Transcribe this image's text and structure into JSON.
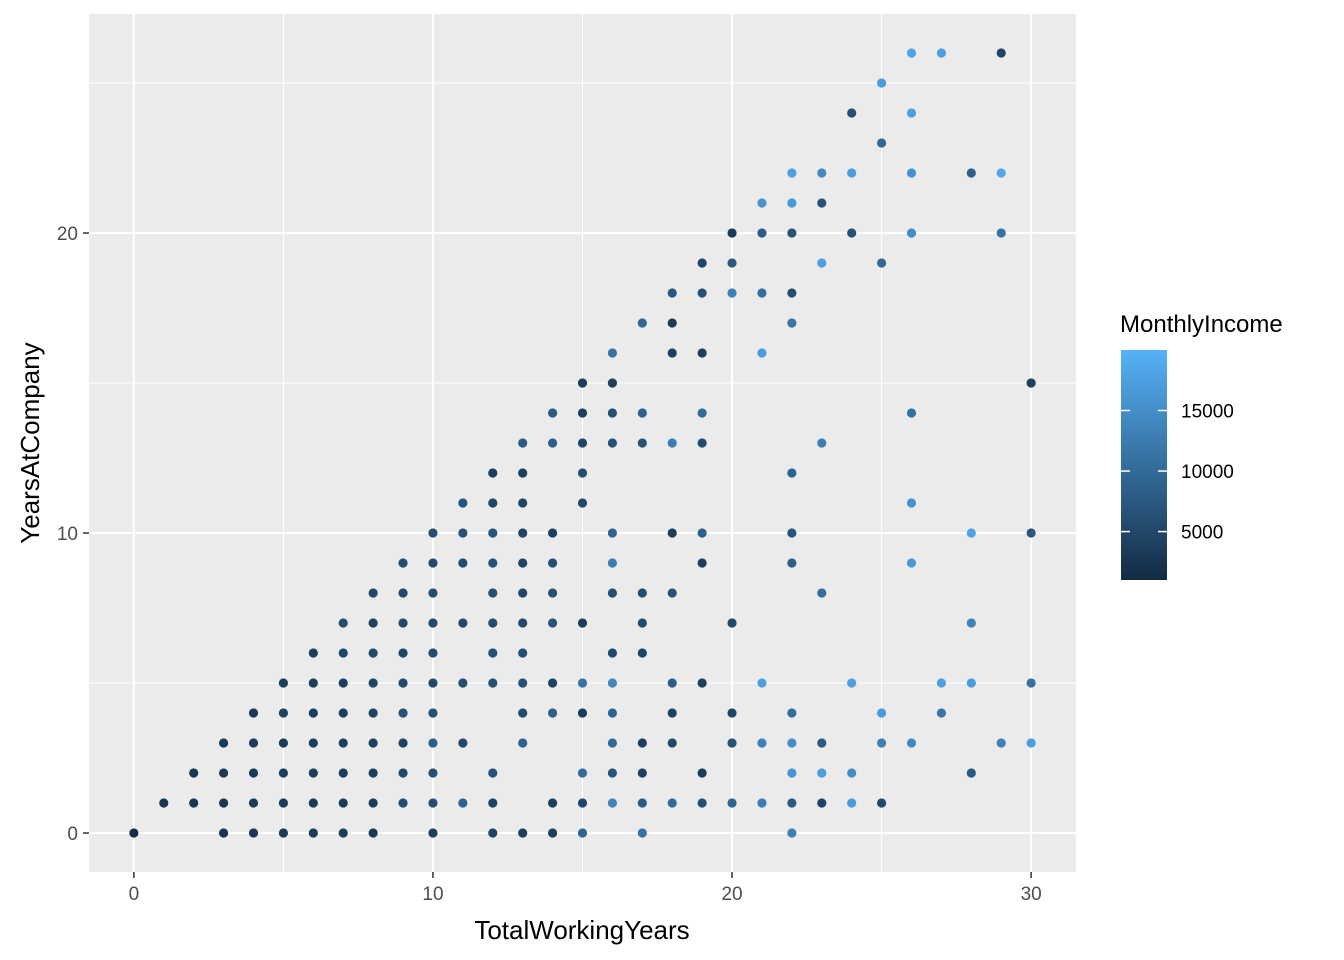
{
  "chart_data": {
    "type": "scatter",
    "title": "",
    "xlabel": "TotalWorkingYears",
    "ylabel": "YearsAtCompany",
    "xlim": [
      -1.5,
      31.5
    ],
    "ylim": [
      -1.3,
      27.3
    ],
    "x_ticks": [
      0,
      10,
      20,
      30
    ],
    "y_ticks": [
      0,
      10,
      20
    ],
    "grid": true,
    "color_scale": {
      "name": "MonthlyIncome",
      "range": [
        1000,
        20000
      ],
      "breaks": [
        5000,
        10000,
        15000
      ],
      "low_color": "#132b43",
      "high_color": "#56b1f7",
      "legend_position": "right"
    },
    "panel_background": "#ebebeb",
    "grid_color": "#ffffff",
    "points": [
      [
        0,
        0,
        1500
      ],
      [
        1,
        1,
        2500
      ],
      [
        2,
        1,
        2800
      ],
      [
        2,
        2,
        2600
      ],
      [
        3,
        0,
        2500
      ],
      [
        3,
        1,
        2800
      ],
      [
        3,
        2,
        3000
      ],
      [
        3,
        3,
        3100
      ],
      [
        4,
        0,
        2900
      ],
      [
        4,
        1,
        3300
      ],
      [
        4,
        2,
        3100
      ],
      [
        4,
        3,
        3500
      ],
      [
        4,
        4,
        3000
      ],
      [
        5,
        0,
        3100
      ],
      [
        5,
        1,
        3300
      ],
      [
        5,
        2,
        3600
      ],
      [
        5,
        3,
        3400
      ],
      [
        5,
        4,
        4200
      ],
      [
        5,
        5,
        3500
      ],
      [
        6,
        0,
        3200
      ],
      [
        6,
        1,
        3000
      ],
      [
        6,
        2,
        3700
      ],
      [
        6,
        3,
        3600
      ],
      [
        6,
        4,
        3600
      ],
      [
        6,
        5,
        3500
      ],
      [
        6,
        6,
        3800
      ],
      [
        7,
        0,
        3400
      ],
      [
        7,
        1,
        3300
      ],
      [
        7,
        2,
        3600
      ],
      [
        7,
        3,
        3800
      ],
      [
        7,
        4,
        3500
      ],
      [
        7,
        5,
        3600
      ],
      [
        7,
        6,
        4800
      ],
      [
        7,
        7,
        5800
      ],
      [
        8,
        0,
        3000
      ],
      [
        8,
        1,
        3300
      ],
      [
        8,
        2,
        3700
      ],
      [
        8,
        3,
        3700
      ],
      [
        8,
        4,
        4300
      ],
      [
        8,
        5,
        4500
      ],
      [
        8,
        6,
        5200
      ],
      [
        8,
        7,
        4300
      ],
      [
        8,
        8,
        5000
      ],
      [
        9,
        1,
        5500
      ],
      [
        9,
        2,
        5300
      ],
      [
        9,
        3,
        4200
      ],
      [
        9,
        4,
        6500
      ],
      [
        9,
        5,
        5300
      ],
      [
        9,
        6,
        4700
      ],
      [
        9,
        7,
        5000
      ],
      [
        9,
        8,
        5300
      ],
      [
        9,
        9,
        5700
      ],
      [
        10,
        0,
        3600
      ],
      [
        10,
        1,
        6000
      ],
      [
        10,
        2,
        6200
      ],
      [
        10,
        3,
        8300
      ],
      [
        10,
        4,
        6200
      ],
      [
        10,
        5,
        5200
      ],
      [
        10,
        6,
        5500
      ],
      [
        10,
        7,
        5400
      ],
      [
        10,
        8,
        5800
      ],
      [
        10,
        9,
        5200
      ],
      [
        10,
        10,
        6000
      ],
      [
        11,
        1,
        8500
      ],
      [
        11,
        3,
        5000
      ],
      [
        11,
        5,
        6000
      ],
      [
        11,
        7,
        5200
      ],
      [
        11,
        9,
        5700
      ],
      [
        11,
        10,
        6500
      ],
      [
        11,
        11,
        6800
      ],
      [
        12,
        0,
        4500
      ],
      [
        12,
        1,
        4200
      ],
      [
        12,
        2,
        6700
      ],
      [
        12,
        5,
        6200
      ],
      [
        12,
        6,
        6300
      ],
      [
        12,
        7,
        5500
      ],
      [
        12,
        8,
        6000
      ],
      [
        12,
        9,
        6500
      ],
      [
        12,
        10,
        6900
      ],
      [
        12,
        11,
        4800
      ],
      [
        12,
        12,
        3500
      ],
      [
        13,
        0,
        3500
      ],
      [
        13,
        3,
        8600
      ],
      [
        13,
        4,
        5500
      ],
      [
        13,
        5,
        6500
      ],
      [
        13,
        6,
        5800
      ],
      [
        13,
        7,
        5200
      ],
      [
        13,
        8,
        4800
      ],
      [
        13,
        9,
        4500
      ],
      [
        13,
        10,
        4700
      ],
      [
        13,
        11,
        4500
      ],
      [
        13,
        12,
        4000
      ],
      [
        13,
        13,
        7800
      ],
      [
        14,
        0,
        3800
      ],
      [
        14,
        1,
        3900
      ],
      [
        14,
        4,
        8200
      ],
      [
        14,
        5,
        4300
      ],
      [
        14,
        7,
        6700
      ],
      [
        14,
        8,
        6400
      ],
      [
        14,
        9,
        6000
      ],
      [
        14,
        10,
        3500
      ],
      [
        14,
        13,
        8200
      ],
      [
        14,
        14,
        7500
      ],
      [
        15,
        0,
        9200
      ],
      [
        15,
        1,
        4700
      ],
      [
        15,
        2,
        10100
      ],
      [
        15,
        4,
        3200
      ],
      [
        15,
        5,
        11000
      ],
      [
        15,
        7,
        3500
      ],
      [
        15,
        11,
        5200
      ],
      [
        15,
        12,
        5900
      ],
      [
        15,
        13,
        4500
      ],
      [
        15,
        14,
        3700
      ],
      [
        15,
        15,
        3600
      ],
      [
        16,
        1,
        13500
      ],
      [
        16,
        2,
        6700
      ],
      [
        16,
        3,
        9900
      ],
      [
        16,
        4,
        9000
      ],
      [
        16,
        5,
        14000
      ],
      [
        16,
        6,
        5300
      ],
      [
        16,
        8,
        5800
      ],
      [
        16,
        9,
        12500
      ],
      [
        16,
        10,
        8800
      ],
      [
        16,
        13,
        6400
      ],
      [
        16,
        14,
        6000
      ],
      [
        16,
        15,
        4000
      ],
      [
        16,
        16,
        11000
      ],
      [
        17,
        0,
        11200
      ],
      [
        17,
        1,
        7700
      ],
      [
        17,
        2,
        4000
      ],
      [
        17,
        3,
        3800
      ],
      [
        17,
        6,
        4500
      ],
      [
        17,
        7,
        5500
      ],
      [
        17,
        8,
        5700
      ],
      [
        17,
        13,
        6600
      ],
      [
        17,
        14,
        8700
      ],
      [
        17,
        17,
        9500
      ],
      [
        18,
        1,
        10000
      ],
      [
        18,
        3,
        5300
      ],
      [
        18,
        4,
        4000
      ],
      [
        18,
        5,
        8300
      ],
      [
        18,
        8,
        6500
      ],
      [
        18,
        10,
        3500
      ],
      [
        18,
        13,
        12500
      ],
      [
        18,
        16,
        3800
      ],
      [
        18,
        17,
        3300
      ],
      [
        18,
        18,
        7300
      ],
      [
        19,
        1,
        6000
      ],
      [
        19,
        2,
        3500
      ],
      [
        19,
        5,
        3900
      ],
      [
        19,
        9,
        3700
      ],
      [
        19,
        10,
        8500
      ],
      [
        19,
        13,
        5500
      ],
      [
        19,
        14,
        10000
      ],
      [
        19,
        16,
        3900
      ],
      [
        19,
        18,
        6500
      ],
      [
        19,
        19,
        4600
      ],
      [
        20,
        1,
        9200
      ],
      [
        20,
        3,
        6300
      ],
      [
        20,
        4,
        4700
      ],
      [
        20,
        7,
        5000
      ],
      [
        20,
        18,
        13000
      ],
      [
        20,
        19,
        7500
      ],
      [
        20,
        20,
        3000
      ],
      [
        21,
        1,
        12500
      ],
      [
        21,
        3,
        13300
      ],
      [
        21,
        5,
        17500
      ],
      [
        21,
        16,
        17000
      ],
      [
        21,
        18,
        10500
      ],
      [
        21,
        20,
        8000
      ],
      [
        21,
        21,
        15700
      ],
      [
        22,
        0,
        13200
      ],
      [
        22,
        1,
        7500
      ],
      [
        22,
        2,
        16000
      ],
      [
        22,
        3,
        15000
      ],
      [
        22,
        4,
        10500
      ],
      [
        22,
        9,
        8500
      ],
      [
        22,
        10,
        7000
      ],
      [
        22,
        12,
        9000
      ],
      [
        22,
        17,
        11500
      ],
      [
        22,
        18,
        6000
      ],
      [
        22,
        20,
        6700
      ],
      [
        22,
        21,
        16600
      ],
      [
        22,
        22,
        17500
      ],
      [
        23,
        1,
        4400
      ],
      [
        23,
        2,
        17000
      ],
      [
        23,
        3,
        7600
      ],
      [
        23,
        8,
        10300
      ],
      [
        23,
        13,
        13000
      ],
      [
        23,
        19,
        17500
      ],
      [
        23,
        21,
        6500
      ],
      [
        23,
        22,
        14500
      ],
      [
        24,
        1,
        16800
      ],
      [
        24,
        2,
        15000
      ],
      [
        24,
        5,
        17700
      ],
      [
        24,
        20,
        6400
      ],
      [
        24,
        22,
        17000
      ],
      [
        24,
        24,
        6000
      ],
      [
        25,
        1,
        5200
      ],
      [
        25,
        3,
        13200
      ],
      [
        25,
        4,
        16900
      ],
      [
        25,
        19,
        9900
      ],
      [
        25,
        23,
        9500
      ],
      [
        25,
        25,
        17000
      ],
      [
        26,
        3,
        14300
      ],
      [
        26,
        9,
        16300
      ],
      [
        26,
        11,
        15800
      ],
      [
        26,
        14,
        10800
      ],
      [
        26,
        20,
        15000
      ],
      [
        26,
        22,
        15500
      ],
      [
        26,
        24,
        17500
      ],
      [
        26,
        26,
        18000
      ],
      [
        27,
        4,
        11500
      ],
      [
        27,
        5,
        17700
      ],
      [
        27,
        26,
        17400
      ],
      [
        28,
        2,
        7800
      ],
      [
        28,
        5,
        17000
      ],
      [
        28,
        7,
        13500
      ],
      [
        28,
        10,
        18000
      ],
      [
        28,
        22,
        8500
      ],
      [
        29,
        3,
        13000
      ],
      [
        29,
        20,
        11000
      ],
      [
        29,
        22,
        18600
      ],
      [
        29,
        26,
        4500
      ],
      [
        30,
        3,
        17300
      ],
      [
        30,
        5,
        10800
      ],
      [
        30,
        10,
        7200
      ],
      [
        30,
        15,
        4000
      ]
    ]
  }
}
